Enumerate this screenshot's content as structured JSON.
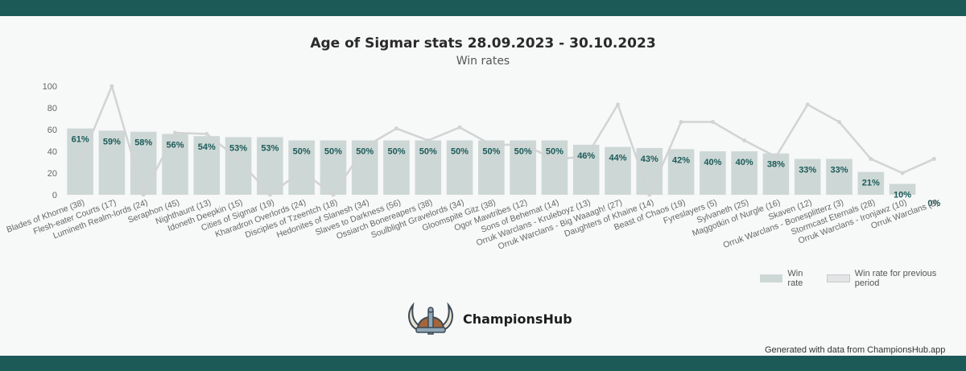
{
  "colors": {
    "header_bar": "#1c5a58",
    "bar_fill": "#cdd8d6",
    "line": "#d2d3d4",
    "bar_label": "#1c5a58",
    "axis_text": "#666666"
  },
  "chart_data": {
    "type": "bar",
    "title": "Age of Sigmar stats 28.09.2023 - 30.10.2023",
    "subtitle": "Win rates",
    "ylim": [
      0,
      100
    ],
    "yticks": [
      0,
      20,
      40,
      60,
      80,
      100
    ],
    "grid": false,
    "legend_position": "bottom-right",
    "categories": [
      "Blades of Khorne (38)",
      "Flesh-eater Courts (17)",
      "Lumineth Realm-lords (24)",
      "Seraphon (45)",
      "Nighthaunt (13)",
      "Idoneth Deepkin (15)",
      "Cities of Sigmar (19)",
      "Kharadron Overlords (24)",
      "Disciples of Tzeentch (18)",
      "Hedonites of Slanesh (34)",
      "Slaves to Darkness (56)",
      "Ossiarch Bonereapers (38)",
      "Soulblight Gravelords (34)",
      "Gloomspite Gitz (38)",
      "Ogor Mawtribes (12)",
      "Sons of Behemat (14)",
      "Orruk Warclans - Kruleboyz (13)",
      "Orruk Warclans - Big Waaagh! (27)",
      "Daughters of Khaine (14)",
      "Beast of Chaos (19)",
      "Fyreslayers (5)",
      "Sylvaneth (25)",
      "Maggotkin of Nurgle (16)",
      "Skaven (12)",
      "Orruk Warclans - Bonesplitterz (3)",
      "Stormcast Eternals (28)",
      "Orruk Warclans - Ironjawz (10)",
      "Orruk Warclans (3)"
    ],
    "series": [
      {
        "name": "Win rate",
        "type": "bar",
        "values": [
          61,
          59,
          58,
          56,
          54,
          53,
          53,
          50,
          50,
          50,
          50,
          50,
          50,
          50,
          50,
          50,
          46,
          44,
          43,
          42,
          40,
          40,
          38,
          33,
          33,
          21,
          10,
          0
        ],
        "labels": [
          "61%",
          "59%",
          "58%",
          "56%",
          "54%",
          "53%",
          "53%",
          "50%",
          "50%",
          "50%",
          "50%",
          "50%",
          "50%",
          "50%",
          "50%",
          "50%",
          "46%",
          "44%",
          "43%",
          "42%",
          "40%",
          "40%",
          "38%",
          "33%",
          "33%",
          "21%",
          "10%",
          "0%"
        ]
      },
      {
        "name": "Win rate for previous period",
        "type": "line",
        "values": [
          30,
          100,
          0,
          57,
          56,
          33,
          0,
          22,
          0,
          44,
          61,
          50,
          62,
          46,
          46,
          33,
          35,
          83,
          0,
          67,
          67,
          50,
          35,
          83,
          67,
          33,
          20,
          33
        ]
      }
    ]
  },
  "legend": {
    "current": "Win rate",
    "previous": "Win rate for previous period"
  },
  "logo": {
    "text": "ChampionsHub",
    "icon": "viking-helmet-icon"
  },
  "footer": {
    "note": "Generated with data from ChampionsHub.app"
  }
}
